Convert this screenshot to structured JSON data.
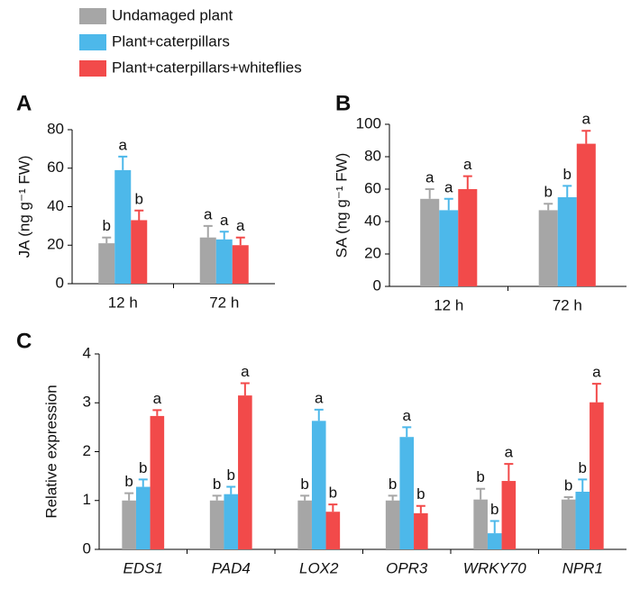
{
  "chart_data": [
    {
      "type": "bar",
      "panel": "A",
      "ylabel": "JA (ng g⁻¹ FW)",
      "categories": [
        "12 h",
        "72 h"
      ],
      "ylim": [
        0,
        80
      ],
      "yticks": [
        0,
        20,
        40,
        60,
        80
      ],
      "series": [
        {
          "name": "Undamaged plant",
          "color": "#a6a6a6",
          "values": [
            21,
            24
          ],
          "errors": [
            3,
            6
          ],
          "letters": [
            "b",
            "a"
          ]
        },
        {
          "name": "Plant+caterpillars",
          "color": "#4db8ea",
          "values": [
            59,
            23
          ],
          "errors": [
            7,
            4
          ],
          "letters": [
            "a",
            "a"
          ]
        },
        {
          "name": "Plant+caterpillars+whiteflies",
          "color": "#f24a4a",
          "values": [
            33,
            20
          ],
          "errors": [
            5,
            4
          ],
          "letters": [
            "b",
            "a"
          ]
        }
      ]
    },
    {
      "type": "bar",
      "panel": "B",
      "ylabel": "SA (ng g⁻¹ FW)",
      "categories": [
        "12 h",
        "72 h"
      ],
      "ylim": [
        0,
        100
      ],
      "yticks": [
        0,
        20,
        40,
        60,
        80,
        100
      ],
      "series": [
        {
          "color": "#a6a6a6",
          "values": [
            54,
            47
          ],
          "errors": [
            6,
            4
          ],
          "letters": [
            "a",
            "b"
          ]
        },
        {
          "color": "#4db8ea",
          "values": [
            47,
            55
          ],
          "errors": [
            7,
            7
          ],
          "letters": [
            "a",
            "b"
          ]
        },
        {
          "color": "#f24a4a",
          "values": [
            60,
            88
          ],
          "errors": [
            8,
            8
          ],
          "letters": [
            "a",
            "a"
          ]
        }
      ]
    },
    {
      "type": "bar",
      "panel": "C",
      "ylabel": "Relative expression",
      "categories": [
        "EDS1",
        "PAD4",
        "LOX2",
        "OPR3",
        "WRKY70",
        "NPR1"
      ],
      "ylim": [
        0,
        4
      ],
      "yticks": [
        0,
        1,
        2,
        3,
        4
      ],
      "series": [
        {
          "color": "#a6a6a6",
          "values": [
            1.0,
            1.0,
            1.0,
            1.0,
            1.02,
            1.02
          ],
          "errors": [
            0.15,
            0.1,
            0.1,
            0.1,
            0.22,
            0.05
          ],
          "letters": [
            "b",
            "b",
            "b",
            "b",
            "b",
            "b"
          ]
        },
        {
          "color": "#4db8ea",
          "values": [
            1.28,
            1.13,
            2.63,
            2.3,
            0.33,
            1.18
          ],
          "errors": [
            0.15,
            0.15,
            0.23,
            0.2,
            0.25,
            0.25
          ],
          "letters": [
            "b",
            "b",
            "a",
            "a",
            "b",
            "b"
          ]
        },
        {
          "color": "#f24a4a",
          "values": [
            2.73,
            3.15,
            0.77,
            0.74,
            1.4,
            3.01
          ],
          "errors": [
            0.12,
            0.25,
            0.15,
            0.15,
            0.35,
            0.38
          ],
          "letters": [
            "a",
            "a",
            "b",
            "b",
            "a",
            "a"
          ]
        }
      ]
    }
  ]
}
